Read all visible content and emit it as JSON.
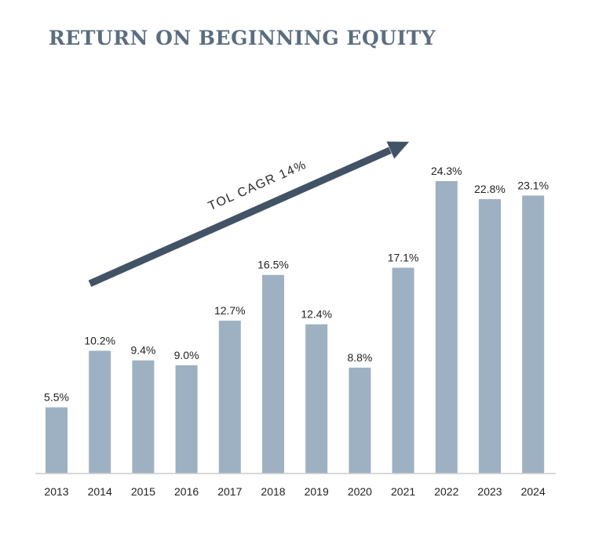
{
  "chart_data": {
    "type": "bar",
    "title": "RETURN ON BEGINNING EQUITY",
    "categories": [
      "2013",
      "2014",
      "2015",
      "2016",
      "2017",
      "2018",
      "2019",
      "2020",
      "2021",
      "2022",
      "2023",
      "2024"
    ],
    "values": [
      5.5,
      10.2,
      9.4,
      9.0,
      12.7,
      16.5,
      12.4,
      8.8,
      17.1,
      24.3,
      22.8,
      23.1
    ],
    "data_labels": [
      "5.5%",
      "10.2%",
      "9.4%",
      "9.0%",
      "12.7%",
      "16.5%",
      "12.4%",
      "8.8%",
      "17.1%",
      "24.3%",
      "22.8%",
      "23.1%"
    ],
    "ylim": [
      0,
      24.3
    ],
    "grid": false,
    "annotation": "TOL CAGR 14%",
    "colors": {
      "bar": "#9eb1c2",
      "arrow": "#435366",
      "axis": "#cccccc",
      "title": "#5b6d7e"
    }
  }
}
